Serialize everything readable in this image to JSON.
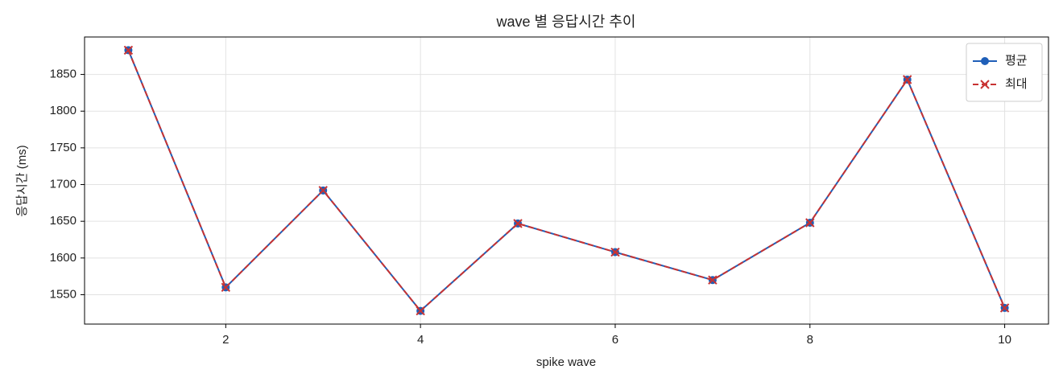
{
  "chart_data": {
    "type": "line",
    "title": "wave 별 응답시간 추이",
    "xlabel": "spike wave",
    "ylabel": "응답시간 (ms)",
    "x": [
      1,
      2,
      3,
      4,
      5,
      6,
      7,
      8,
      9,
      10
    ],
    "series": [
      {
        "name": "평균",
        "color": "#1f5fb8",
        "marker": "o",
        "linestyle": "solid",
        "values": [
          1883,
          1560,
          1692,
          1528,
          1647,
          1608,
          1570,
          1648,
          1843,
          1532
        ]
      },
      {
        "name": "최대",
        "color": "#c83232",
        "marker": "x",
        "linestyle": "dashed",
        "values": [
          1883,
          1560,
          1692,
          1528,
          1647,
          1608,
          1570,
          1648,
          1843,
          1532
        ]
      }
    ],
    "xlim": [
      0.55,
      10.45
    ],
    "xticks": [
      2,
      4,
      6,
      8,
      10
    ],
    "ylim": [
      1510,
      1901
    ],
    "yticks": [
      1550,
      1600,
      1650,
      1700,
      1750,
      1800,
      1850
    ],
    "grid": true,
    "legend": "upper right"
  }
}
